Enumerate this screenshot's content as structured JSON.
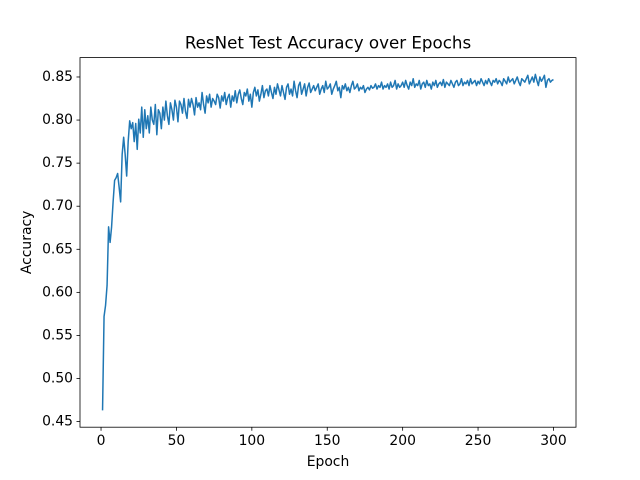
{
  "chart_data": {
    "type": "line",
    "title": "ResNet Test Accuracy over Epochs",
    "x_label": "Epoch",
    "y_label": "Accuracy",
    "color": "#1f77b4",
    "xlim": [
      -13.95,
      314.95
    ],
    "xticks": [
      0,
      50,
      100,
      150,
      200,
      250,
      300
    ],
    "ylim": [
      0.4435,
      0.8725
    ],
    "yticks": [
      0.45,
      {
        "value": 0.5,
        "label": "0.50"
      },
      0.55,
      {
        "value": 0.6,
        "label": "0.60"
      },
      0.65,
      {
        "value": 0.7,
        "label": "0.70"
      },
      0.75,
      {
        "value": 0.8,
        "label": "0.80"
      },
      0.85
    ],
    "x": [
      1,
      2,
      3,
      4,
      5,
      6,
      7,
      8,
      9,
      10,
      11,
      12,
      13,
      14,
      15,
      16,
      17,
      18,
      19,
      20,
      21,
      22,
      23,
      24,
      25,
      26,
      27,
      28,
      29,
      30,
      31,
      32,
      33,
      34,
      35,
      36,
      37,
      38,
      39,
      40,
      41,
      42,
      43,
      44,
      45,
      46,
      47,
      48,
      49,
      50,
      51,
      52,
      53,
      54,
      55,
      56,
      57,
      58,
      59,
      60,
      61,
      62,
      63,
      64,
      65,
      66,
      67,
      68,
      69,
      70,
      71,
      72,
      73,
      74,
      75,
      76,
      77,
      78,
      79,
      80,
      81,
      82,
      83,
      84,
      85,
      86,
      87,
      88,
      89,
      90,
      91,
      92,
      93,
      94,
      95,
      96,
      97,
      98,
      99,
      100,
      101,
      102,
      103,
      104,
      105,
      106,
      107,
      108,
      109,
      110,
      111,
      112,
      113,
      114,
      115,
      116,
      117,
      118,
      119,
      120,
      121,
      122,
      123,
      124,
      125,
      126,
      127,
      128,
      129,
      130,
      131,
      132,
      133,
      134,
      135,
      136,
      137,
      138,
      139,
      140,
      141,
      142,
      143,
      144,
      145,
      146,
      147,
      148,
      149,
      150,
      151,
      152,
      153,
      154,
      155,
      156,
      157,
      158,
      159,
      160,
      161,
      162,
      163,
      164,
      165,
      166,
      167,
      168,
      169,
      170,
      171,
      172,
      173,
      174,
      175,
      176,
      177,
      178,
      179,
      180,
      181,
      182,
      183,
      184,
      185,
      186,
      187,
      188,
      189,
      190,
      191,
      192,
      193,
      194,
      195,
      196,
      197,
      198,
      199,
      200,
      201,
      202,
      203,
      204,
      205,
      206,
      207,
      208,
      209,
      210,
      211,
      212,
      213,
      214,
      215,
      216,
      217,
      218,
      219,
      220,
      221,
      222,
      223,
      224,
      225,
      226,
      227,
      228,
      229,
      230,
      231,
      232,
      233,
      234,
      235,
      236,
      237,
      238,
      239,
      240,
      241,
      242,
      243,
      244,
      245,
      246,
      247,
      248,
      249,
      250,
      251,
      252,
      253,
      254,
      255,
      256,
      257,
      258,
      259,
      260,
      261,
      262,
      263,
      264,
      265,
      266,
      267,
      268,
      269,
      270,
      271,
      272,
      273,
      274,
      275,
      276,
      277,
      278,
      279,
      280,
      281,
      282,
      283,
      284,
      285,
      286,
      287,
      288,
      289,
      290,
      291,
      292,
      293,
      294,
      295,
      296,
      297,
      298,
      299,
      300
    ],
    "values": [
      0.463,
      0.572,
      0.585,
      0.608,
      0.676,
      0.658,
      0.676,
      0.705,
      0.73,
      0.733,
      0.738,
      0.722,
      0.705,
      0.76,
      0.78,
      0.76,
      0.735,
      0.775,
      0.799,
      0.79,
      0.797,
      0.775,
      0.796,
      0.766,
      0.801,
      0.785,
      0.815,
      0.78,
      0.812,
      0.79,
      0.805,
      0.785,
      0.815,
      0.8,
      0.795,
      0.818,
      0.783,
      0.812,
      0.808,
      0.79,
      0.815,
      0.8,
      0.822,
      0.805,
      0.795,
      0.82,
      0.812,
      0.8,
      0.823,
      0.815,
      0.798,
      0.822,
      0.818,
      0.808,
      0.825,
      0.81,
      0.802,
      0.824,
      0.815,
      0.825,
      0.818,
      0.806,
      0.826,
      0.815,
      0.82,
      0.812,
      0.832,
      0.818,
      0.808,
      0.828,
      0.82,
      0.83,
      0.815,
      0.825,
      0.822,
      0.818,
      0.83,
      0.826,
      0.814,
      0.828,
      0.822,
      0.832,
      0.818,
      0.826,
      0.83,
      0.815,
      0.828,
      0.822,
      0.834,
      0.82,
      0.83,
      0.835,
      0.825,
      0.818,
      0.832,
      0.828,
      0.836,
      0.822,
      0.83,
      0.815,
      0.832,
      0.838,
      0.828,
      0.835,
      0.822,
      0.83,
      0.84,
      0.826,
      0.834,
      0.836,
      0.828,
      0.84,
      0.832,
      0.825,
      0.838,
      0.83,
      0.842,
      0.835,
      0.828,
      0.84,
      0.832,
      0.824,
      0.838,
      0.842,
      0.83,
      0.836,
      0.828,
      0.845,
      0.834,
      0.826,
      0.84,
      0.844,
      0.83,
      0.836,
      0.842,
      0.828,
      0.838,
      0.843,
      0.832,
      0.836,
      0.84,
      0.834,
      0.838,
      0.842,
      0.83,
      0.836,
      0.84,
      0.832,
      0.845,
      0.836,
      0.838,
      0.842,
      0.83,
      0.836,
      0.84,
      0.845,
      0.834,
      0.838,
      0.826,
      0.84,
      0.836,
      0.842,
      0.834,
      0.838,
      0.832,
      0.84,
      0.845,
      0.836,
      0.838,
      0.842,
      0.834,
      0.838,
      0.836,
      0.84,
      0.832,
      0.836,
      0.838,
      0.835,
      0.84,
      0.837,
      0.838,
      0.842,
      0.836,
      0.84,
      0.838,
      0.844,
      0.836,
      0.84,
      0.838,
      0.842,
      0.836,
      0.844,
      0.838,
      0.84,
      0.846,
      0.836,
      0.842,
      0.838,
      0.84,
      0.844,
      0.838,
      0.846,
      0.84,
      0.836,
      0.844,
      0.84,
      0.848,
      0.838,
      0.842,
      0.84,
      0.846,
      0.836,
      0.842,
      0.844,
      0.838,
      0.846,
      0.84,
      0.842,
      0.836,
      0.844,
      0.84,
      0.846,
      0.838,
      0.842,
      0.844,
      0.84,
      0.847,
      0.838,
      0.844,
      0.842,
      0.84,
      0.846,
      0.842,
      0.838,
      0.844,
      0.846,
      0.84,
      0.842,
      0.848,
      0.84,
      0.844,
      0.842,
      0.846,
      0.84,
      0.848,
      0.842,
      0.844,
      0.846,
      0.84,
      0.845,
      0.842,
      0.848,
      0.844,
      0.84,
      0.846,
      0.842,
      0.848,
      0.844,
      0.84,
      0.846,
      0.844,
      0.848,
      0.842,
      0.846,
      0.844,
      0.84,
      0.848,
      0.845,
      0.842,
      0.85,
      0.844,
      0.846,
      0.848,
      0.842,
      0.846,
      0.85,
      0.844,
      0.84,
      0.848,
      0.846,
      0.844,
      0.848,
      0.852,
      0.842,
      0.846,
      0.85,
      0.844,
      0.853,
      0.846,
      0.84,
      0.85,
      0.845,
      0.848,
      0.852,
      0.838,
      0.846,
      0.848,
      0.844,
      0.846,
      0.847
    ]
  }
}
